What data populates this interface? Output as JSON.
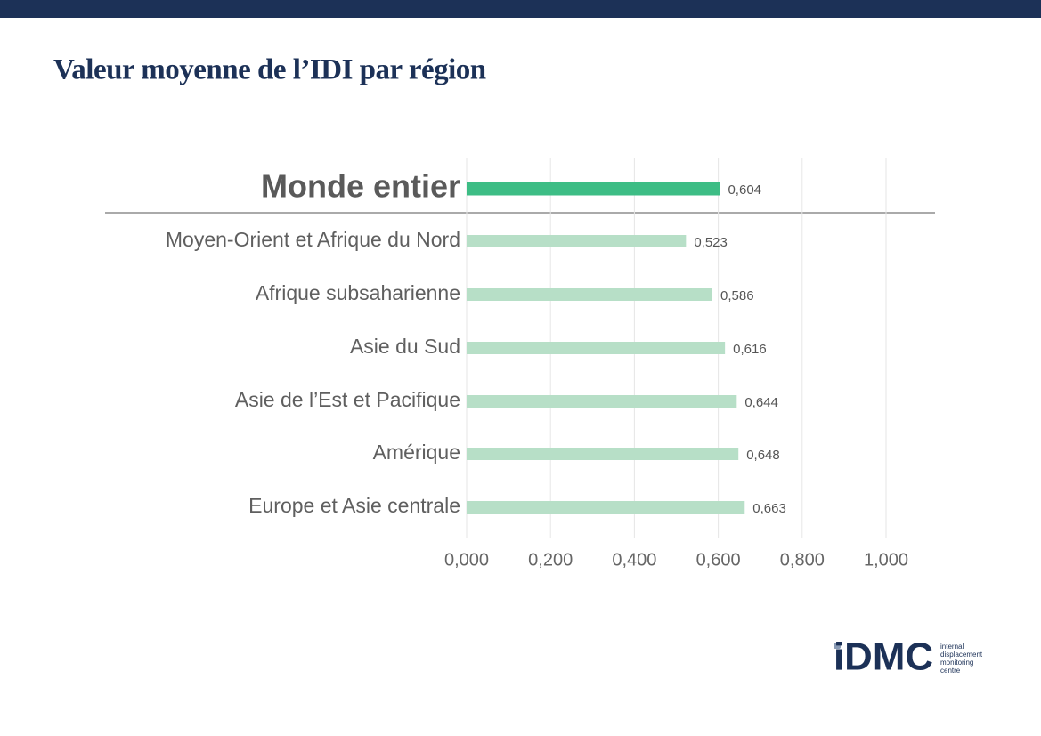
{
  "chart_data": {
    "type": "bar",
    "orientation": "horizontal",
    "title": "Valeur moyenne de l’IDI par région",
    "categories": [
      "Monde entier",
      "Moyen-Orient et Afrique du Nord",
      "Afrique subsaharienne",
      "Asie du Sud",
      "Asie de l’Est et Pacifique",
      "Amérique",
      "Europe et Asie centrale"
    ],
    "values": [
      0.604,
      0.523,
      0.586,
      0.616,
      0.644,
      0.648,
      0.663
    ],
    "value_labels": [
      "0,604",
      "0,523",
      "0,586",
      "0,616",
      "0,644",
      "0,648",
      "0,663"
    ],
    "colors": [
      "#3dbd85",
      "#b7dfc7",
      "#b7dfc7",
      "#b7dfc7",
      "#b7dfc7",
      "#b7dfc7",
      "#b7dfc7"
    ],
    "xlim": [
      0,
      1
    ],
    "xticks": [
      {
        "value": 0,
        "label": "0,000"
      },
      {
        "value": 0.2,
        "label": "0,200"
      },
      {
        "value": 0.4,
        "label": "0,400"
      },
      {
        "value": 0.6,
        "label": "0,600"
      },
      {
        "value": 0.8,
        "label": "0,800"
      },
      {
        "value": 1,
        "label": "1,000"
      }
    ],
    "grid": true
  },
  "logo": {
    "mark": "iDMC",
    "lines": [
      "internal",
      "displacement",
      "monitoring",
      "centre"
    ]
  }
}
